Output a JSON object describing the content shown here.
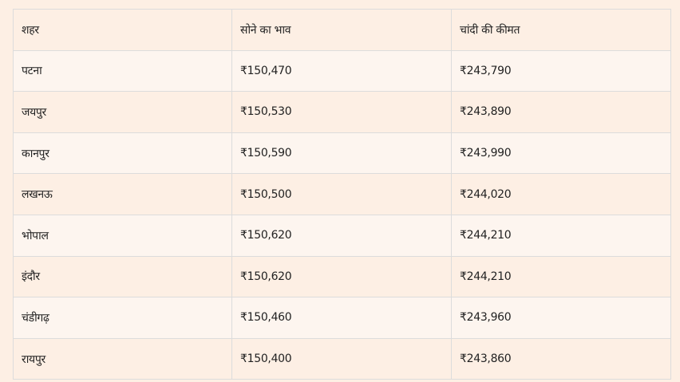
{
  "table": {
    "headers": [
      "शहर",
      "सोने का भाव",
      "चांदी की कीमत"
    ],
    "rows": [
      [
        "पटना",
        "₹150,470",
        "₹243,790"
      ],
      [
        "जयपुर",
        "₹150,530",
        "₹243,890"
      ],
      [
        "कानपुर",
        "₹150,590",
        "₹243,990"
      ],
      [
        "लखनऊ",
        "₹150,500",
        "₹244,020"
      ],
      [
        "भोपाल",
        "₹150,620",
        "₹244,210"
      ],
      [
        "इंदौर",
        "₹150,620",
        "₹244,210"
      ],
      [
        "चंडीगढ़",
        "₹150,460",
        "₹243,960"
      ],
      [
        "रायपुर",
        "₹150,400",
        "₹243,860"
      ]
    ]
  }
}
